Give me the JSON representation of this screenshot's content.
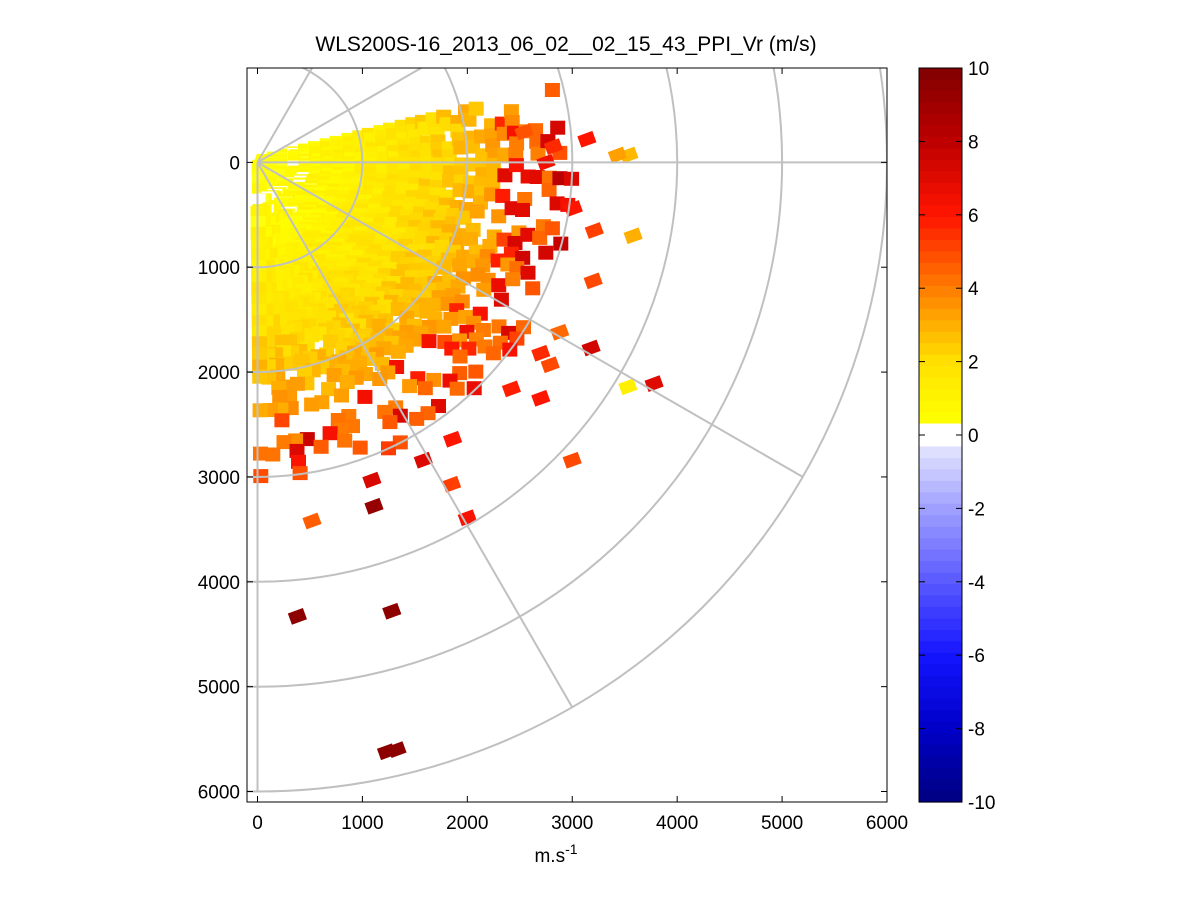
{
  "chart_data": {
    "type": "heatmap",
    "subtype": "polar-ppi-scan",
    "title": "WLS200S-16_2013_06_02__02_15_43_PPI_Vr (m/s)",
    "xlabel_base": "m.s",
    "xlabel_exp": "-1",
    "ylabel": "",
    "xlim": [
      -100,
      6000
    ],
    "ylim": [
      -900,
      6100
    ],
    "y_reversed": true,
    "xticks": [
      0,
      1000,
      2000,
      3000,
      4000,
      5000,
      6000
    ],
    "yticks": [
      0,
      1000,
      2000,
      3000,
      4000,
      5000,
      6000
    ],
    "polar_grid": {
      "ring_radii": [
        1000,
        2000,
        3000,
        4000,
        5000,
        6000
      ],
      "spoke_angles_deg": [
        -60,
        -30,
        0,
        30,
        60,
        90
      ],
      "spoke_length": 6000
    },
    "colorbar": {
      "colormap": "blue-white-yellow-red",
      "range": [
        -10,
        10
      ],
      "ticks": [
        10,
        8,
        6,
        4,
        2,
        0,
        -2,
        -4,
        -6,
        -8,
        -10
      ],
      "levels": 64,
      "dead_zone": [
        -0.3,
        0.3
      ]
    },
    "scan_sector": {
      "azimuth_range_deg": [
        -15,
        90
      ],
      "core_range_max_m": 3000,
      "values_m_per_s": "approx 0 to 3 near origin, increasing to 4-6 at the sector edge, scattered 5-10 at long range"
    },
    "isolated_cells": [
      {
        "x": 3540,
        "y": -70,
        "value": 2.8
      },
      {
        "x": 3430,
        "y": -70,
        "value": 3.3
      },
      {
        "x": 3580,
        "y": 700,
        "value": 3.0
      },
      {
        "x": 3180,
        "y": 1770,
        "value": 7.4
      },
      {
        "x": 3530,
        "y": 2140,
        "value": 1.2
      },
      {
        "x": 3780,
        "y": 2110,
        "value": 7.0
      },
      {
        "x": 3000,
        "y": 2840,
        "value": 5.0
      },
      {
        "x": 2700,
        "y": 2250,
        "value": 6.0
      },
      {
        "x": 2000,
        "y": 3390,
        "value": 6.2
      },
      {
        "x": 1850,
        "y": 3070,
        "value": 5.2
      },
      {
        "x": 1110,
        "y": 3280,
        "value": 9.3
      },
      {
        "x": 1090,
        "y": 3030,
        "value": 7.2
      },
      {
        "x": 520,
        "y": 3420,
        "value": 4.6
      },
      {
        "x": 380,
        "y": 4330,
        "value": 9.6
      },
      {
        "x": 1280,
        "y": 4280,
        "value": 9.6
      },
      {
        "x": 1230,
        "y": 5620,
        "value": 9.6
      },
      {
        "x": 1330,
        "y": 5600,
        "value": 9.6
      },
      {
        "x": 1580,
        "y": 2840,
        "value": 7.1
      },
      {
        "x": 1860,
        "y": 2640,
        "value": 6.0
      },
      {
        "x": 2420,
        "y": 2160,
        "value": 5.8
      },
      {
        "x": 2790,
        "y": 1930,
        "value": 5.0
      },
      {
        "x": 2700,
        "y": 1820,
        "value": 5.6
      },
      {
        "x": 3210,
        "y": 650,
        "value": 5.2
      },
      {
        "x": 3200,
        "y": 1130,
        "value": 5.0
      },
      {
        "x": 2880,
        "y": 1620,
        "value": 4.4
      },
      {
        "x": 3010,
        "y": 440,
        "value": 6.0
      },
      {
        "x": 2820,
        "y": -150,
        "value": 5.6
      },
      {
        "x": 3140,
        "y": -220,
        "value": 6.0
      },
      {
        "x": 2540,
        "y": -290,
        "value": 4.8
      },
      {
        "x": 2750,
        "y": 0,
        "value": 6.4
      }
    ]
  }
}
